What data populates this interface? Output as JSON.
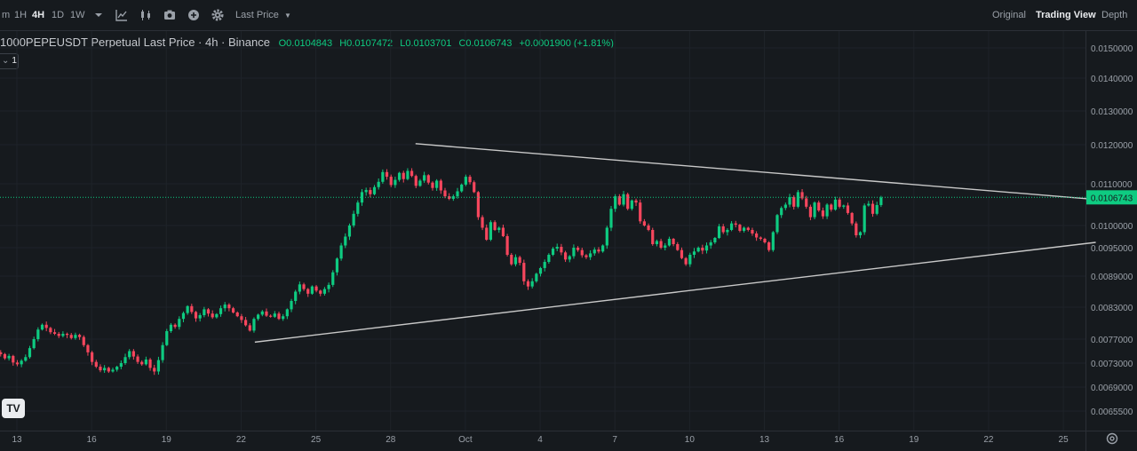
{
  "toolbar": {
    "intervals": [
      {
        "label": "m",
        "active": false
      },
      {
        "label": "1H",
        "active": false
      },
      {
        "label": "4H",
        "active": true
      },
      {
        "label": "1D",
        "active": false
      },
      {
        "label": "1W",
        "active": false
      }
    ],
    "price_type": "Last Price",
    "icons": [
      "chevron-down-icon",
      "indicators-icon",
      "candle-type-icon",
      "screenshot-icon",
      "add-icon",
      "gear-icon"
    ],
    "views": [
      {
        "label": "Original",
        "active": false
      },
      {
        "label": "Trading View",
        "active": true
      },
      {
        "label": "Depth",
        "active": false
      }
    ]
  },
  "legend": {
    "symbol": "1000PEPEUSDT Perpetual Last Price · 4h · Binance",
    "open": "O0.0104843",
    "high": "H0.0107472",
    "low": "L0.0103701",
    "close": "C0.0106743",
    "change": "+0.0001900 (+1.81%)",
    "indicator_count": "1"
  },
  "logo_text": "TV",
  "colors": {
    "up": "#0ecb81",
    "down": "#f6465d",
    "trendline": "#c8c8c8",
    "last_price": "#0ecb81",
    "grid": "#1e2329"
  },
  "chart_data": {
    "type": "candlestick",
    "interval": "4h",
    "last_price": 0.0106743,
    "last_price_label": "0.0106743",
    "ylim": [
      0.0062,
      0.0156
    ],
    "y_ticks": [
      0.00655,
      0.0069,
      0.0073,
      0.0077,
      0.0083,
      0.0089,
      0.0095,
      0.01,
      0.011,
      0.012,
      0.013,
      0.014,
      0.015
    ],
    "y_tick_labels": [
      "0.0065500",
      "0.0069000",
      "0.0073000",
      "0.0077000",
      "0.0083000",
      "0.0089000",
      "0.0095000",
      "0.0100000",
      "0.0110000",
      "0.0120000",
      "0.0130000",
      "0.0140000",
      "0.0150000"
    ],
    "x_ticks": [
      13,
      16,
      19,
      22,
      25,
      28,
      31,
      34,
      37,
      40,
      43,
      46,
      49,
      52,
      55
    ],
    "x_tick_labels": [
      "13",
      "16",
      "19",
      "22",
      "25",
      "28",
      "Oct",
      "4",
      "7",
      "10",
      "13",
      "16",
      "19",
      "22",
      "25"
    ],
    "xlim": [
      12.35,
      56.7
    ],
    "x_units": "days (Sep 1 = day 1; Oct 1 = day 31)",
    "closes": [
      0.00745,
      0.00738,
      0.00742,
      0.00731,
      0.00728,
      0.00734,
      0.0074,
      0.00755,
      0.0077,
      0.00788,
      0.00797,
      0.00791,
      0.00783,
      0.0078,
      0.00776,
      0.0078,
      0.00778,
      0.00772,
      0.00778,
      0.00774,
      0.0076,
      0.00748,
      0.00732,
      0.00724,
      0.00718,
      0.00722,
      0.00716,
      0.00719,
      0.00724,
      0.0073,
      0.0074,
      0.0075,
      0.00741,
      0.00732,
      0.00728,
      0.00736,
      0.00722,
      0.00716,
      0.00735,
      0.0076,
      0.00785,
      0.00797,
      0.00793,
      0.00808,
      0.00819,
      0.00832,
      0.00821,
      0.00809,
      0.00815,
      0.00826,
      0.00818,
      0.00811,
      0.00817,
      0.00828,
      0.00835,
      0.00828,
      0.0082,
      0.00813,
      0.00806,
      0.00796,
      0.00786,
      0.00808,
      0.00816,
      0.00822,
      0.00814,
      0.00812,
      0.00818,
      0.00808,
      0.00813,
      0.00826,
      0.00842,
      0.0086,
      0.00874,
      0.00865,
      0.00856,
      0.0087,
      0.00862,
      0.00856,
      0.00865,
      0.00873,
      0.00898,
      0.00927,
      0.00955,
      0.00975,
      0.01,
      0.01028,
      0.01055,
      0.0108,
      0.01085,
      0.01075,
      0.01092,
      0.01105,
      0.0113,
      0.01118,
      0.01097,
      0.0111,
      0.01128,
      0.01112,
      0.01133,
      0.0112,
      0.01095,
      0.01108,
      0.01122,
      0.01103,
      0.0109,
      0.01108,
      0.01084,
      0.0107,
      0.01064,
      0.0107,
      0.01082,
      0.01098,
      0.01118,
      0.01104,
      0.0108,
      0.0102,
      0.00995,
      0.00968,
      0.01008,
      0.0099,
      0.00995,
      0.00976,
      0.00935,
      0.00915,
      0.0093,
      0.00918,
      0.0088,
      0.0087,
      0.0088,
      0.00895,
      0.00907,
      0.0092,
      0.00935,
      0.00948,
      0.00952,
      0.0094,
      0.00925,
      0.00932,
      0.0095,
      0.00945,
      0.00934,
      0.0093,
      0.00938,
      0.00946,
      0.00942,
      0.00955,
      0.00995,
      0.0104,
      0.0107,
      0.0105,
      0.01075,
      0.0104,
      0.0106,
      0.01055,
      0.0101,
      0.01,
      0.0099,
      0.00958,
      0.00965,
      0.0095,
      0.00955,
      0.0097,
      0.00958,
      0.00945,
      0.00928,
      0.00915,
      0.00935,
      0.00942,
      0.0095,
      0.00944,
      0.00955,
      0.00962,
      0.00972,
      0.00998,
      0.00985,
      0.0099,
      0.01005,
      0.01002,
      0.00988,
      0.00995,
      0.0099,
      0.00982,
      0.00973,
      0.0097,
      0.00962,
      0.00945,
      0.00985,
      0.01025,
      0.01042,
      0.0105,
      0.01068,
      0.01045,
      0.0108,
      0.01065,
      0.01045,
      0.0102,
      0.01055,
      0.01036,
      0.01022,
      0.0105,
      0.01038,
      0.01062,
      0.01045,
      0.01048,
      0.0103,
      0.01005,
      0.00978,
      0.00985,
      0.01048,
      0.01052,
      0.01028,
      0.01049,
      0.01067
    ],
    "trendlines": [
      {
        "name": "upper",
        "points": [
          [
            29.0,
            0.01203
          ],
          [
            56.2,
            0.01063
          ]
        ]
      },
      {
        "name": "lower",
        "points": [
          [
            22.55,
            0.00765
          ],
          [
            56.3,
            0.00962
          ]
        ]
      }
    ],
    "grid": true,
    "legend": "top-left"
  }
}
